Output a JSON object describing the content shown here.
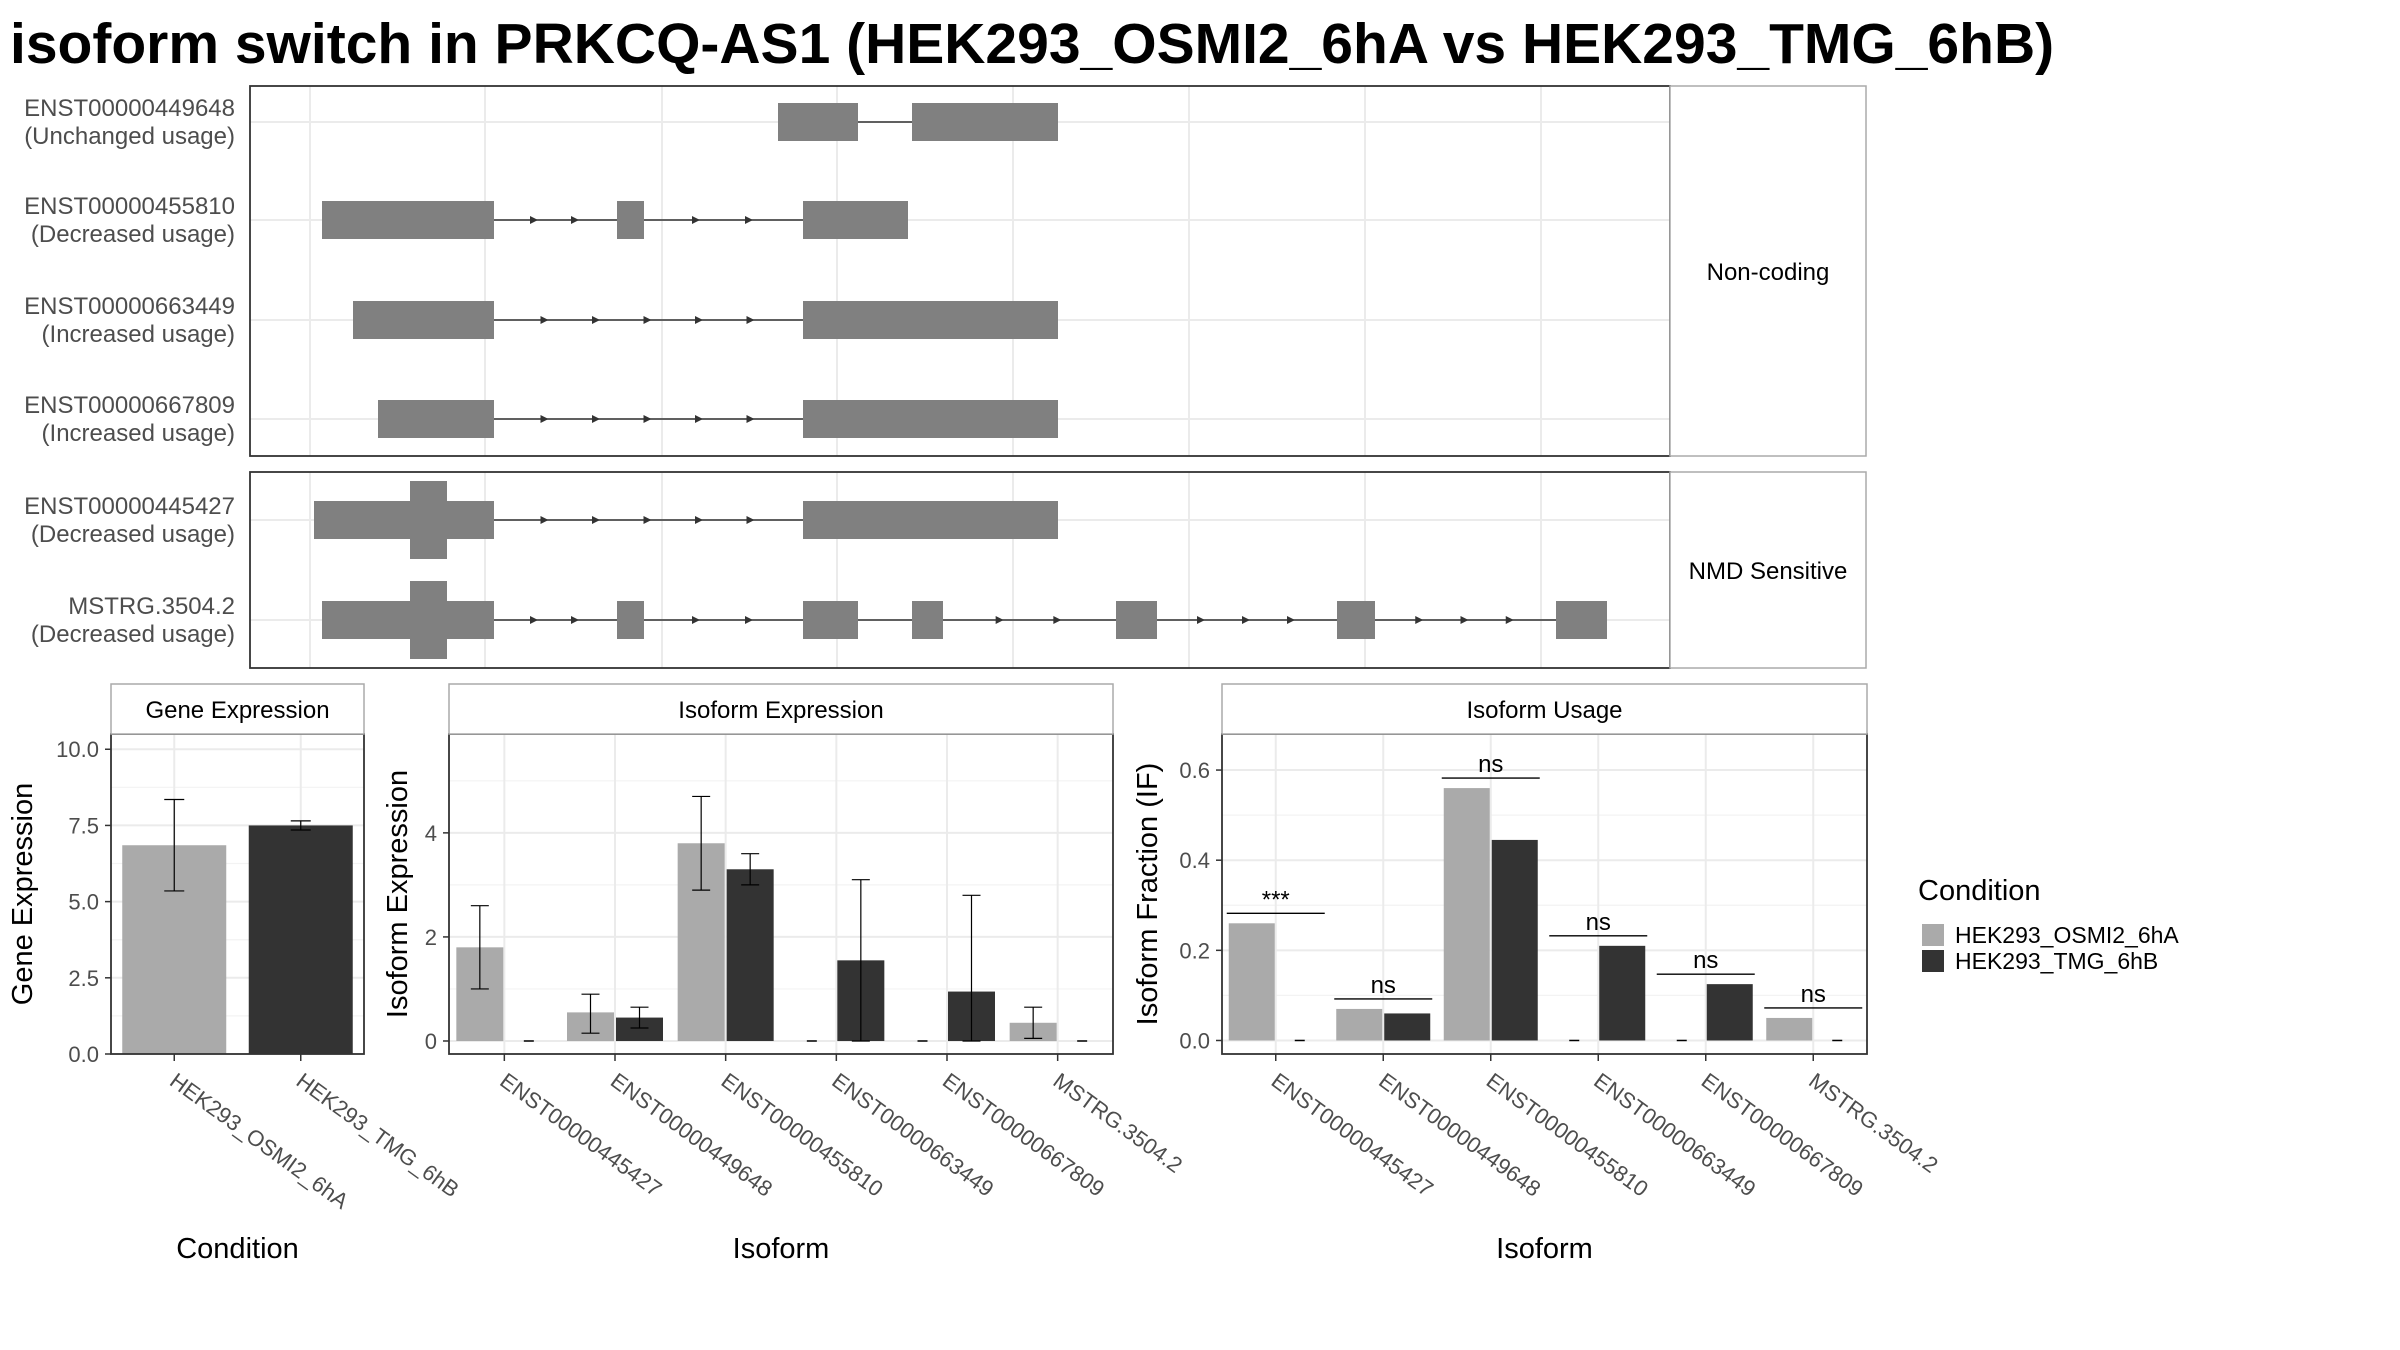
{
  "title": "isoform switch in PRKCQ-AS1 (HEK293_OSMI2_6hA vs HEK293_TMG_6hB)",
  "colors": {
    "condA": "#aaaaaa",
    "condB": "#333333",
    "exon": "#808080",
    "grid": "#ebebeb",
    "panel_border": "#333333",
    "strip_border": "#aaaaaa",
    "axis_text": "#4d4d4d"
  },
  "chart_data": [
    {
      "type": "gene-structure",
      "facets": [
        {
          "label": "Non-coding",
          "isoforms": [
            {
              "id": "ENST00000449648",
              "usage": "(Unchanged usage)"
            },
            {
              "id": "ENST00000455810",
              "usage": "(Decreased usage)"
            },
            {
              "id": "ENST00000663449",
              "usage": "(Increased usage)"
            },
            {
              "id": "ENST00000667809",
              "usage": "(Increased usage)"
            }
          ]
        },
        {
          "label": "NMD Sensitive",
          "isoforms": [
            {
              "id": "ENST00000445427",
              "usage": "(Decreased usage)"
            },
            {
              "id": "MSTRG.3504.2",
              "usage": "(Decreased usage)"
            }
          ]
        }
      ]
    },
    {
      "type": "bar",
      "title": "Gene Expression",
      "xlabel": "Condition",
      "ylabel": "Gene Expression",
      "categories": [
        "HEK293_OSMI2_6hA",
        "HEK293_TMG_6hB"
      ],
      "ylim": [
        0,
        10.5
      ],
      "yticks": [
        "0.0",
        "2.5",
        "5.0",
        "7.5",
        "10.0"
      ],
      "values": [
        6.85,
        7.5
      ],
      "error_low": [
        5.35,
        7.35
      ],
      "error_high": [
        8.35,
        7.65
      ]
    },
    {
      "type": "bar",
      "title": "Isoform Expression",
      "xlabel": "Isoform",
      "ylabel": "Isoform Expression",
      "categories": [
        "ENST00000445427",
        "ENST00000449648",
        "ENST00000455810",
        "ENST00000663449",
        "ENST00000667809",
        "MSTRG.3504.2"
      ],
      "ylim": [
        -0.25,
        5.9
      ],
      "yticks": [
        "0",
        "2",
        "4"
      ],
      "series": [
        {
          "name": "HEK293_OSMI2_6hA",
          "values": [
            1.8,
            0.55,
            3.8,
            0.0,
            0.0,
            0.35
          ],
          "error_low": [
            1.0,
            0.15,
            2.9,
            0.0,
            0.0,
            0.05
          ],
          "error_high": [
            2.6,
            0.9,
            4.7,
            0.0,
            0.0,
            0.65
          ]
        },
        {
          "name": "HEK293_TMG_6hB",
          "values": [
            0.0,
            0.45,
            3.3,
            1.55,
            0.95,
            0.0
          ],
          "error_low": [
            0.0,
            0.25,
            3.0,
            0.0,
            0.0,
            0.0
          ],
          "error_high": [
            0.0,
            0.65,
            3.6,
            3.1,
            2.8,
            0.0
          ]
        }
      ]
    },
    {
      "type": "bar",
      "title": "Isoform Usage",
      "xlabel": "Isoform",
      "ylabel": "Isoform Fraction (IF)",
      "categories": [
        "ENST00000445427",
        "ENST00000449648",
        "ENST00000455810",
        "ENST00000663449",
        "ENST00000667809",
        "MSTRG.3504.2"
      ],
      "ylim": [
        -0.03,
        0.68
      ],
      "yticks": [
        "0.0",
        "0.2",
        "0.4",
        "0.6"
      ],
      "series": [
        {
          "name": "HEK293_OSMI2_6hA",
          "values": [
            0.26,
            0.07,
            0.56,
            0.0,
            0.0,
            0.05
          ]
        },
        {
          "name": "HEK293_TMG_6hB",
          "values": [
            0.0,
            0.06,
            0.445,
            0.21,
            0.125,
            0.0
          ]
        }
      ],
      "significance": [
        "***",
        "ns",
        "ns",
        "ns",
        "ns",
        "ns"
      ]
    }
  ],
  "legend": {
    "title": "Condition",
    "entries": [
      "HEK293_OSMI2_6hA",
      "HEK293_TMG_6hB"
    ]
  }
}
